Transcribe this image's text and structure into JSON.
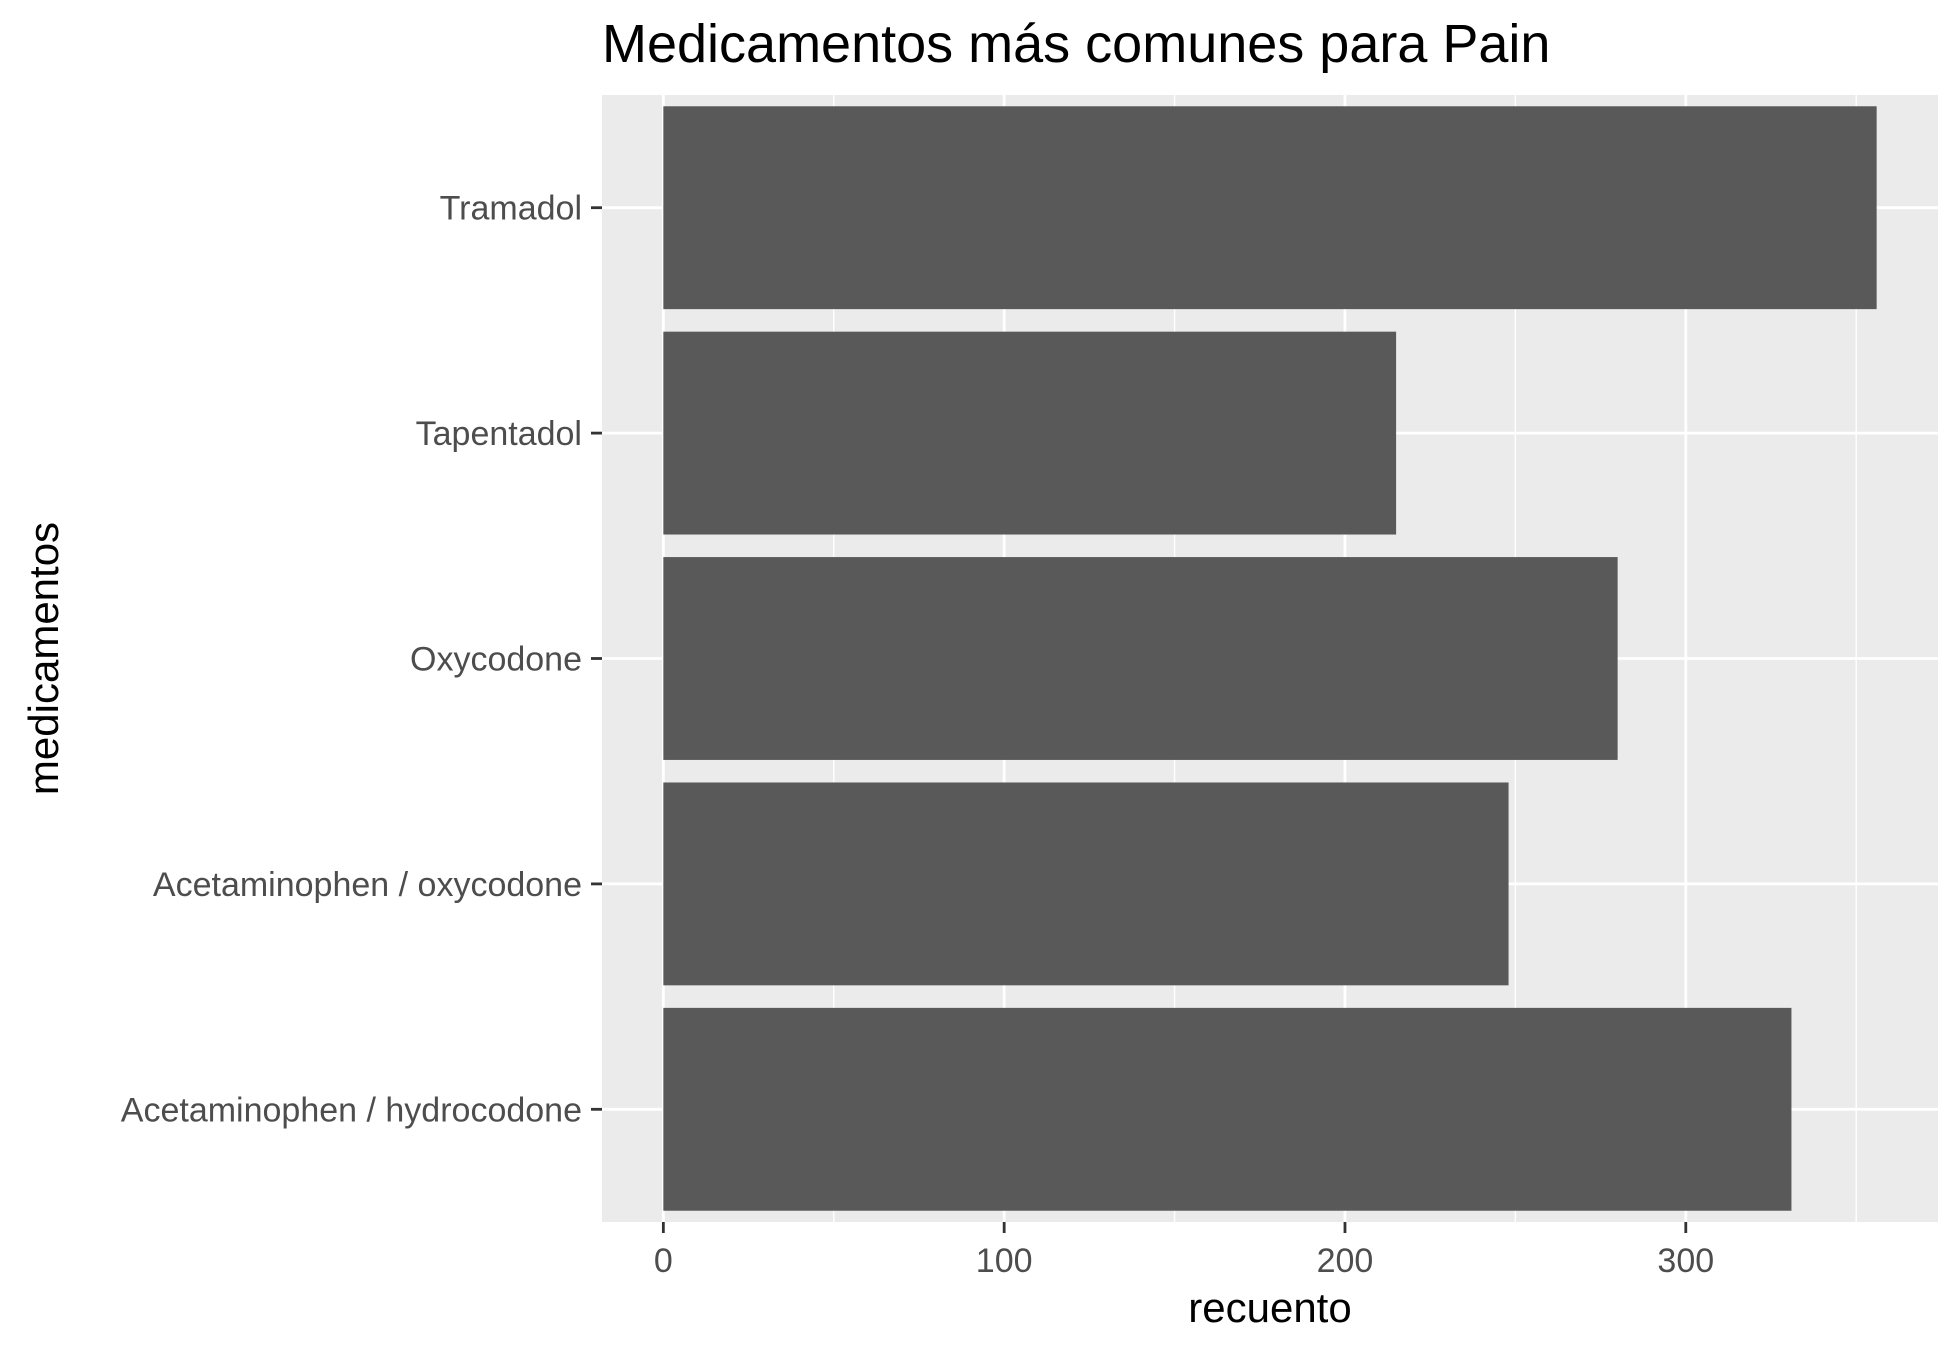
{
  "chart_data": {
    "type": "bar",
    "orientation": "horizontal",
    "title": "Medicamentos más comunes para Pain",
    "xlabel": "recuento",
    "ylabel": "medicamentos",
    "categories": [
      "Acetaminophen / hydrocodone",
      "Acetaminophen / oxycodone",
      "Oxycodone",
      "Tapentadol",
      "Tramadol"
    ],
    "values": [
      331,
      248,
      280,
      215,
      356
    ],
    "xlim": [
      -18,
      374
    ],
    "xticks": [
      0,
      100,
      200,
      300
    ],
    "xtick_labels": [
      "0",
      "100",
      "200",
      "300"
    ],
    "grid": true,
    "colors": {
      "bar": "#595959",
      "panel": "#ebebeb",
      "grid": "#ffffff",
      "tick_text": "#4d4d4d",
      "tick_mark": "#333333"
    }
  }
}
